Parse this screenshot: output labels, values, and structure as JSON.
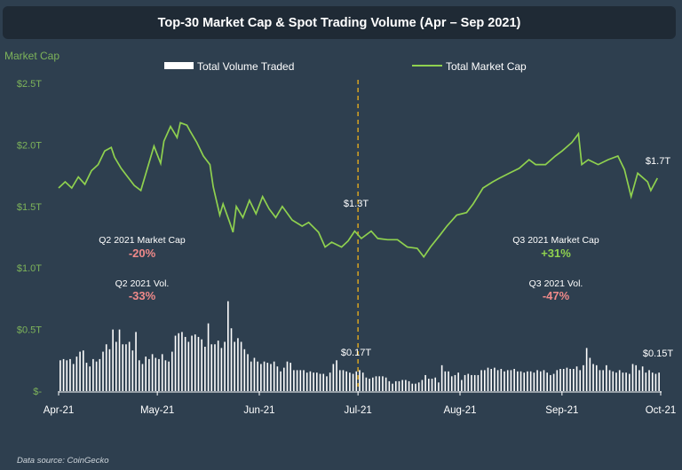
{
  "chart_data": [
    {
      "type": "bar",
      "title": "Top-30 Market Cap & Spot Trading Volume (Apr – Sep 2021)",
      "series": [
        {
          "name": "Total Volume Traded",
          "color": "#ffffff",
          "x_range": [
            "2021-04-01",
            "2021-09-30"
          ],
          "frequency": "daily",
          "values": [
            0.25,
            0.26,
            0.25,
            0.26,
            0.22,
            0.28,
            0.32,
            0.33,
            0.23,
            0.2,
            0.26,
            0.24,
            0.26,
            0.32,
            0.38,
            0.34,
            0.5,
            0.4,
            0.5,
            0.38,
            0.38,
            0.4,
            0.33,
            0.48,
            0.25,
            0.22,
            0.28,
            0.26,
            0.3,
            0.27,
            0.26,
            0.3,
            0.25,
            0.24,
            0.32,
            0.45,
            0.47,
            0.48,
            0.44,
            0.4,
            0.45,
            0.46,
            0.44,
            0.42,
            0.36,
            0.55,
            0.38,
            0.38,
            0.41,
            0.35,
            0.4,
            0.73,
            0.51,
            0.4,
            0.43,
            0.4,
            0.34,
            0.3,
            0.24,
            0.27,
            0.24,
            0.22,
            0.24,
            0.23,
            0.22,
            0.24,
            0.2,
            0.16,
            0.19,
            0.24,
            0.23,
            0.17,
            0.17,
            0.17,
            0.17,
            0.15,
            0.16,
            0.15,
            0.15,
            0.14,
            0.14,
            0.12,
            0.15,
            0.22,
            0.25,
            0.17,
            0.17,
            0.16,
            0.15,
            0.14,
            0.16,
            0.17,
            0.15,
            0.11,
            0.1,
            0.11,
            0.12,
            0.12,
            0.12,
            0.11,
            0.08,
            0.06,
            0.08,
            0.08,
            0.09,
            0.09,
            0.08,
            0.06,
            0.06,
            0.07,
            0.09,
            0.13,
            0.1,
            0.1,
            0.11,
            0.07,
            0.21,
            0.16,
            0.16,
            0.12,
            0.13,
            0.15,
            0.09,
            0.13,
            0.14,
            0.13,
            0.13,
            0.13,
            0.17,
            0.17,
            0.19,
            0.18,
            0.19,
            0.17,
            0.18,
            0.16,
            0.17,
            0.17,
            0.18,
            0.16,
            0.16,
            0.15,
            0.16,
            0.16,
            0.15,
            0.17,
            0.16,
            0.17,
            0.15,
            0.13,
            0.14,
            0.17,
            0.18,
            0.18,
            0.19,
            0.18,
            0.18,
            0.2,
            0.17,
            0.21,
            0.35,
            0.27,
            0.22,
            0.21,
            0.17,
            0.17,
            0.21,
            0.17,
            0.16,
            0.15,
            0.17,
            0.15,
            0.15,
            0.14,
            0.22,
            0.21,
            0.17,
            0.2,
            0.15,
            0.17,
            0.15,
            0.14,
            0.15
          ]
        }
      ],
      "unit": "T USD"
    },
    {
      "type": "line",
      "series": [
        {
          "name": "Total Market Cap",
          "color": "#8fd14f",
          "points": [
            [
              "2021-04-01",
              1.65
            ],
            [
              "2021-04-03",
              1.7
            ],
            [
              "2021-04-05",
              1.65
            ],
            [
              "2021-04-07",
              1.74
            ],
            [
              "2021-04-09",
              1.68
            ],
            [
              "2021-04-11",
              1.79
            ],
            [
              "2021-04-13",
              1.84
            ],
            [
              "2021-04-15",
              1.95
            ],
            [
              "2021-04-17",
              1.98
            ],
            [
              "2021-04-18",
              1.9
            ],
            [
              "2021-04-20",
              1.81
            ],
            [
              "2021-04-22",
              1.74
            ],
            [
              "2021-04-24",
              1.67
            ],
            [
              "2021-04-26",
              1.63
            ],
            [
              "2021-04-28",
              1.81
            ],
            [
              "2021-04-30",
              1.99
            ],
            [
              "2021-05-02",
              1.85
            ],
            [
              "2021-05-03",
              2.03
            ],
            [
              "2021-05-05",
              2.15
            ],
            [
              "2021-05-07",
              2.06
            ],
            [
              "2021-05-08",
              2.18
            ],
            [
              "2021-05-10",
              2.16
            ],
            [
              "2021-05-11",
              2.11
            ],
            [
              "2021-05-13",
              2.02
            ],
            [
              "2021-05-15",
              1.91
            ],
            [
              "2021-05-17",
              1.84
            ],
            [
              "2021-05-18",
              1.66
            ],
            [
              "2021-05-20",
              1.43
            ],
            [
              "2021-05-21",
              1.52
            ],
            [
              "2021-05-23",
              1.37
            ],
            [
              "2021-05-24",
              1.29
            ],
            [
              "2021-05-25",
              1.5
            ],
            [
              "2021-05-27",
              1.41
            ],
            [
              "2021-05-29",
              1.55
            ],
            [
              "2021-05-31",
              1.44
            ],
            [
              "2021-06-02",
              1.58
            ],
            [
              "2021-06-04",
              1.48
            ],
            [
              "2021-06-06",
              1.41
            ],
            [
              "2021-06-08",
              1.5
            ],
            [
              "2021-06-11",
              1.39
            ],
            [
              "2021-06-14",
              1.34
            ],
            [
              "2021-06-16",
              1.37
            ],
            [
              "2021-06-19",
              1.29
            ],
            [
              "2021-06-21",
              1.17
            ],
            [
              "2021-06-23",
              1.21
            ],
            [
              "2021-06-26",
              1.17
            ],
            [
              "2021-06-28",
              1.22
            ],
            [
              "2021-06-30",
              1.3
            ],
            [
              "2021-07-02",
              1.24
            ],
            [
              "2021-07-05",
              1.3
            ],
            [
              "2021-07-07",
              1.24
            ],
            [
              "2021-07-10",
              1.23
            ],
            [
              "2021-07-13",
              1.23
            ],
            [
              "2021-07-16",
              1.17
            ],
            [
              "2021-07-19",
              1.16
            ],
            [
              "2021-07-21",
              1.09
            ],
            [
              "2021-07-23",
              1.17
            ],
            [
              "2021-07-26",
              1.27
            ],
            [
              "2021-07-28",
              1.34
            ],
            [
              "2021-07-31",
              1.43
            ],
            [
              "2021-08-03",
              1.45
            ],
            [
              "2021-08-05",
              1.52
            ],
            [
              "2021-08-08",
              1.65
            ],
            [
              "2021-08-11",
              1.7
            ],
            [
              "2021-08-13",
              1.73
            ],
            [
              "2021-08-16",
              1.77
            ],
            [
              "2021-08-19",
              1.81
            ],
            [
              "2021-08-22",
              1.88
            ],
            [
              "2021-08-24",
              1.84
            ],
            [
              "2021-08-27",
              1.84
            ],
            [
              "2021-08-30",
              1.91
            ],
            [
              "2021-09-01",
              1.95
            ],
            [
              "2021-09-04",
              2.02
            ],
            [
              "2021-09-06",
              2.09
            ],
            [
              "2021-09-07",
              1.84
            ],
            [
              "2021-09-09",
              1.88
            ],
            [
              "2021-09-12",
              1.84
            ],
            [
              "2021-09-15",
              1.88
            ],
            [
              "2021-09-18",
              1.91
            ],
            [
              "2021-09-20",
              1.8
            ],
            [
              "2021-09-22",
              1.58
            ],
            [
              "2021-09-24",
              1.77
            ],
            [
              "2021-09-27",
              1.7
            ],
            [
              "2021-09-28",
              1.63
            ],
            [
              "2021-09-30",
              1.73
            ]
          ]
        }
      ],
      "unit": "T USD"
    }
  ],
  "title": "Top-30 Market Cap & Spot Trading Volume (Apr – Sep 2021)",
  "ylabel": "Market Cap",
  "ylim": [
    0,
    2.5
  ],
  "y_ticks": [
    "$-",
    "$0.5T",
    "$1.0T",
    "$1.5T",
    "$2.0T",
    "$2.5T"
  ],
  "x_ticks": [
    "Apr-21",
    "May-21",
    "Jun-21",
    "Jul-21",
    "Aug-21",
    "Sep-21",
    "Oct-21"
  ],
  "legend": {
    "placement": "top",
    "volume": "Total Volume Traded",
    "mcap": "Total Market Cap"
  },
  "divider_date": "2021-07-01",
  "divider_color": "#d9a521",
  "annotations": {
    "mcap_mid": "$1.3T",
    "vol_mid": "$0.17T",
    "mcap_end": "$1.7T",
    "vol_end": "$0.15T",
    "q2_mcap_label": "Q2 2021 Market Cap",
    "q2_mcap_change": "-20%",
    "q2_vol_label": "Q2 2021 Vol.",
    "q2_vol_change": "-33%",
    "q3_mcap_label": "Q3 2021 Market Cap",
    "q3_mcap_change": "+31%",
    "q3_vol_label": "Q3 2021 Vol.",
    "q3_vol_change": "-47%"
  },
  "colors": {
    "positive": "#8fd14f",
    "negative": "#f08a8a",
    "axis_label": "#7db35a",
    "background": "#2e3f4f"
  },
  "source": "Data source: CoinGecko"
}
